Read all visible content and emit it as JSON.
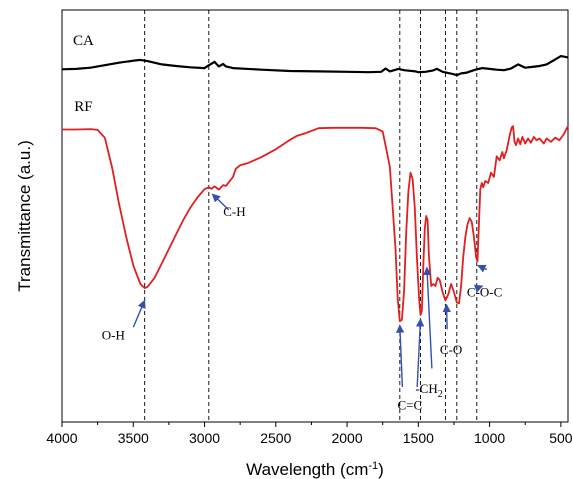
{
  "chart_data": {
    "type": "line",
    "xlabel": "Wavelength (cm",
    "xlabel_sup": "-1",
    "xlabel_end": ")",
    "ylabel": "Transmittance (a.u.)",
    "xlim": [
      4000,
      450
    ],
    "ylim": [
      0,
      100
    ],
    "x_reversed": true,
    "y_ticks_shown": false,
    "grid": false,
    "xticks": [
      4000,
      3500,
      3000,
      2500,
      2000,
      1500,
      1000,
      500
    ],
    "xtick_labels": [
      "4000",
      "3500",
      "3000",
      "2500",
      "2000",
      "1500",
      "1000",
      "500"
    ],
    "series": [
      {
        "name": "CA",
        "color": "#000000",
        "points": [
          [
            4000,
            85.6
          ],
          [
            3900,
            85.7
          ],
          [
            3800,
            86.0
          ],
          [
            3700,
            86.6
          ],
          [
            3600,
            87.2
          ],
          [
            3500,
            87.7
          ],
          [
            3450,
            87.9
          ],
          [
            3400,
            87.6
          ],
          [
            3300,
            86.8
          ],
          [
            3200,
            86.4
          ],
          [
            3100,
            86.1
          ],
          [
            3000,
            85.9
          ],
          [
            2960,
            86.8
          ],
          [
            2930,
            87.4
          ],
          [
            2900,
            86.3
          ],
          [
            2870,
            86.9
          ],
          [
            2850,
            86.3
          ],
          [
            2800,
            85.9
          ],
          [
            2600,
            85.5
          ],
          [
            2400,
            85.2
          ],
          [
            2200,
            85.1
          ],
          [
            2000,
            85.0
          ],
          [
            1850,
            84.9
          ],
          [
            1760,
            85.0
          ],
          [
            1730,
            85.8
          ],
          [
            1700,
            85.1
          ],
          [
            1640,
            85.7
          ],
          [
            1600,
            85.4
          ],
          [
            1520,
            85.1
          ],
          [
            1500,
            84.9
          ],
          [
            1450,
            85.0
          ],
          [
            1400,
            85.3
          ],
          [
            1370,
            85.7
          ],
          [
            1330,
            85.0
          ],
          [
            1260,
            84.5
          ],
          [
            1230,
            84.2
          ],
          [
            1200,
            84.6
          ],
          [
            1160,
            84.8
          ],
          [
            1100,
            85.5
          ],
          [
            1050,
            85.9
          ],
          [
            1000,
            85.7
          ],
          [
            950,
            85.5
          ],
          [
            900,
            85.4
          ],
          [
            850,
            85.8
          ],
          [
            800,
            86.8
          ],
          [
            750,
            86.0
          ],
          [
            700,
            86.2
          ],
          [
            650,
            86.4
          ],
          [
            600,
            86.8
          ],
          [
            550,
            87.8
          ],
          [
            500,
            88.8
          ],
          [
            450,
            88.5
          ]
        ]
      },
      {
        "name": "RF",
        "color": "#e02020",
        "points": [
          [
            4000,
            71.0
          ],
          [
            3900,
            71.0
          ],
          [
            3800,
            71.1
          ],
          [
            3750,
            70.9
          ],
          [
            3700,
            69.0
          ],
          [
            3650,
            62.0
          ],
          [
            3600,
            53.0
          ],
          [
            3550,
            45.0
          ],
          [
            3500,
            38.0
          ],
          [
            3450,
            33.5
          ],
          [
            3420,
            32.5
          ],
          [
            3400,
            32.8
          ],
          [
            3350,
            35.0
          ],
          [
            3300,
            38.5
          ],
          [
            3250,
            42.0
          ],
          [
            3200,
            45.5
          ],
          [
            3150,
            49.0
          ],
          [
            3100,
            52.0
          ],
          [
            3050,
            54.5
          ],
          [
            3000,
            56.5
          ],
          [
            2970,
            57.0
          ],
          [
            2950,
            56.6
          ],
          [
            2930,
            57.2
          ],
          [
            2900,
            56.4
          ],
          [
            2870,
            57.5
          ],
          [
            2850,
            57.3
          ],
          [
            2800,
            59.5
          ],
          [
            2780,
            61.5
          ],
          [
            2750,
            62.3
          ],
          [
            2700,
            62.8
          ],
          [
            2600,
            64.3
          ],
          [
            2500,
            66.2
          ],
          [
            2400,
            68.5
          ],
          [
            2350,
            69.5
          ],
          [
            2300,
            70.0
          ],
          [
            2200,
            71.3
          ],
          [
            2100,
            71.4
          ],
          [
            2000,
            71.4
          ],
          [
            1900,
            71.4
          ],
          [
            1800,
            71.3
          ],
          [
            1750,
            70.5
          ],
          [
            1700,
            62.0
          ],
          [
            1680,
            52.0
          ],
          [
            1660,
            42.0
          ],
          [
            1645,
            30.0
          ],
          [
            1630,
            24.5
          ],
          [
            1615,
            24.8
          ],
          [
            1600,
            32.0
          ],
          [
            1585,
            46.0
          ],
          [
            1570,
            56.0
          ],
          [
            1555,
            60.5
          ],
          [
            1540,
            59.0
          ],
          [
            1525,
            52.0
          ],
          [
            1510,
            40.0
          ],
          [
            1495,
            30.0
          ],
          [
            1485,
            26.0
          ],
          [
            1475,
            27.0
          ],
          [
            1465,
            38.0
          ],
          [
            1455,
            47.0
          ],
          [
            1445,
            50.0
          ],
          [
            1435,
            49.0
          ],
          [
            1425,
            40.0
          ],
          [
            1410,
            33.0
          ],
          [
            1395,
            33.5
          ],
          [
            1380,
            33.0
          ],
          [
            1365,
            35.0
          ],
          [
            1350,
            34.5
          ],
          [
            1330,
            31.5
          ],
          [
            1310,
            29.5
          ],
          [
            1290,
            31.0
          ],
          [
            1270,
            33.5
          ],
          [
            1250,
            31.5
          ],
          [
            1230,
            29.0
          ],
          [
            1215,
            28.8
          ],
          [
            1200,
            33.0
          ],
          [
            1185,
            40.0
          ],
          [
            1170,
            45.0
          ],
          [
            1155,
            48.0
          ],
          [
            1140,
            49.5
          ],
          [
            1125,
            48.5
          ],
          [
            1110,
            45.0
          ],
          [
            1095,
            40.0
          ],
          [
            1085,
            39.0
          ],
          [
            1075,
            48.0
          ],
          [
            1065,
            56.5
          ],
          [
            1055,
            58.0
          ],
          [
            1045,
            57.0
          ],
          [
            1030,
            58.5
          ],
          [
            1010,
            58.0
          ],
          [
            990,
            60.5
          ],
          [
            970,
            59.5
          ],
          [
            950,
            64.5
          ],
          [
            930,
            63.5
          ],
          [
            910,
            65.5
          ],
          [
            900,
            64.0
          ],
          [
            880,
            66.0
          ],
          [
            860,
            69.5
          ],
          [
            845,
            71.5
          ],
          [
            835,
            71.8
          ],
          [
            825,
            68.0
          ],
          [
            815,
            67.2
          ],
          [
            800,
            68.8
          ],
          [
            785,
            67.4
          ],
          [
            770,
            69.2
          ],
          [
            750,
            67.6
          ],
          [
            730,
            68.8
          ],
          [
            710,
            67.8
          ],
          [
            690,
            69.2
          ],
          [
            670,
            68.4
          ],
          [
            650,
            68.8
          ],
          [
            620,
            67.6
          ],
          [
            600,
            68.8
          ],
          [
            570,
            68.0
          ],
          [
            540,
            69.0
          ],
          [
            510,
            68.4
          ],
          [
            480,
            69.8
          ],
          [
            460,
            71.2
          ],
          [
            450,
            71.8
          ]
        ]
      }
    ],
    "reference_lines_x": [
      3420,
      2970,
      1630,
      1485,
      1310,
      1230,
      1090
    ],
    "annotations": [
      {
        "text": "O-H",
        "x": 3640,
        "y": 20.0,
        "arrow_from": [
          3500,
          23.0
        ],
        "arrow_to": [
          3420,
          29.5
        ]
      },
      {
        "text": "C-H",
        "x": 2790,
        "y": 50.0,
        "arrow_from": [
          2830,
          51.5
        ],
        "arrow_to": [
          2945,
          55.3
        ]
      },
      {
        "text": "C=C",
        "x": 1560,
        "y": 3.0,
        "arrow_from": [
          1612,
          8.5
        ],
        "arrow_to": [
          1630,
          23.5
        ],
        "arrow2_from": [
          1508,
          8.5
        ],
        "arrow2_to": [
          1485,
          25.0
        ]
      },
      {
        "text": "-CH",
        "sub": "2",
        "x": 1425,
        "y": 7.0,
        "arrow_from": [
          1405,
          13.0
        ],
        "arrow_to": [
          1440,
          37.5
        ]
      },
      {
        "text": "C-O",
        "x": 1270,
        "y": 16.5,
        "arrow_from": [
          1298,
          22.5
        ],
        "arrow_to": [
          1302,
          28.5
        ]
      },
      {
        "text": "C-O-C",
        "x": 1035,
        "y": 30.5,
        "arrow_from": [
          1090,
          32.5
        ],
        "arrow_to": [
          1050,
          33.0
        ],
        "arrow2_from": [
          1020,
          37.0
        ],
        "arrow2_to": [
          1082,
          38.0
        ]
      }
    ]
  }
}
